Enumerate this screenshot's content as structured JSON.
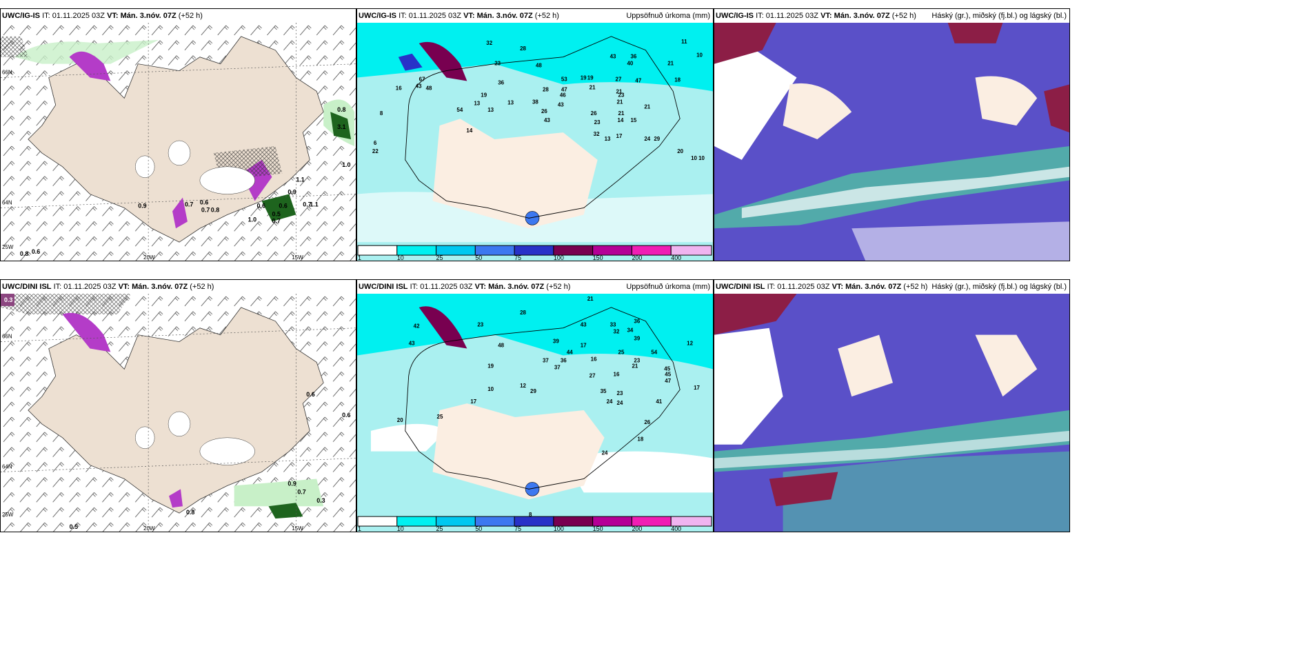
{
  "panels": {
    "top_left": {
      "model": "UWC/IG-IS",
      "it_label": "IT:",
      "it": "01.11.2025 03Z",
      "vt_label": "VT:",
      "vt": "Mán. 3.nóv. 07Z",
      "lead": "(+52 h)",
      "right_title": ""
    },
    "top_mid": {
      "model": "UWC/IG-IS",
      "it_label": "IT:",
      "it": "01.11.2025 03Z",
      "vt_label": "VT:",
      "vt": "Mán. 3.nóv. 07Z",
      "lead": "(+52 h)",
      "right_title": "Uppsöfnuð úrkoma (mm)"
    },
    "top_right": {
      "model": "UWC/IG-IS",
      "it_label": "IT:",
      "it": "01.11.2025 03Z",
      "vt_label": "VT:",
      "vt": "Mán. 3.nóv. 07Z",
      "lead": "(+52 h)",
      "right_title": "Háský (gr.), miðský (fj.bl.) og lágský (bl.)"
    },
    "bot_left": {
      "model": "UWC/DINI ISL",
      "it_label": "IT:",
      "it": "01.11.2025 03Z",
      "vt_label": "VT:",
      "vt": "Mán. 3.nóv. 07Z",
      "lead": "(+52 h)",
      "right_title": ""
    },
    "bot_mid": {
      "model": "UWC/DINI ISL",
      "it_label": "IT:",
      "it": "01.11.2025 03Z",
      "vt_label": "VT:",
      "vt": "Mán. 3.nóv. 07Z",
      "lead": "(+52 h)",
      "right_title": "Uppsöfnuð úrkoma (mm)"
    },
    "bot_right": {
      "model": "UWC/DINI ISL",
      "it_label": "IT:",
      "it": "01.11.2025 03Z",
      "vt_label": "VT:",
      "vt": "Mán. 3.nóv. 07Z",
      "lead": "(+52 h)",
      "right_title": "Háský (gr.), miðský (fj.bl.) og lágský (bl.)"
    }
  },
  "grid_labels": {
    "lon_20w": "20W",
    "lon_15w": "15W",
    "lon_25w": "25W",
    "lat_66n": "66N",
    "lat_64n": "64N"
  },
  "colorbar": {
    "ticks": [
      "1",
      "10",
      "25",
      "50",
      "75",
      "100",
      "150",
      "200",
      "400"
    ],
    "colors": [
      "#ffffff",
      "#00f0f0",
      "#00c8f0",
      "#3c78f0",
      "#2832c8",
      "#780050",
      "#b40096",
      "#f01eb4",
      "#f0b4f0"
    ]
  },
  "colors": {
    "land": "#ede0d2",
    "sea": "#ffffff",
    "precip_light": "#c8f0c8",
    "precip_green": "#1e641e",
    "precip_magenta": "#b43cc8",
    "acc_cyan": "#00f0f0",
    "acc_light": "#aaf0f0",
    "cloud_high": "#8c1e46",
    "cloud_mid": "#5a50c8",
    "cloud_low": "#50c8a0"
  },
  "top_left_values": [
    "0.8",
    "3.1",
    "1.0",
    "1.1",
    "0.9",
    "0.9",
    "0.7",
    "0.6",
    "0.7",
    "0.8",
    "0.6",
    "0.5",
    "0.7",
    "1.0",
    "0.6",
    "0.7",
    "1.1",
    "0.8",
    "0.6"
  ],
  "bot_left_values": [
    "0.3",
    "0.6",
    "0.6",
    "0.9",
    "0.7",
    "0.3",
    "0.8",
    "0.5"
  ],
  "top_mid_values": [
    "32",
    "28",
    "23",
    "36",
    "48",
    "53",
    "47",
    "46",
    "43",
    "19",
    "19",
    "21",
    "27",
    "43",
    "40",
    "36",
    "21",
    "47",
    "21",
    "18",
    "21",
    "16",
    "67",
    "43",
    "48",
    "13",
    "13",
    "19",
    "13",
    "38",
    "26",
    "28",
    "43",
    "54",
    "14",
    "26",
    "23",
    "8",
    "6",
    "22",
    "21",
    "23",
    "14",
    "15",
    "32",
    "13",
    "17",
    "24",
    "29",
    "21",
    "20",
    "10",
    "10",
    "11",
    "10"
  ],
  "bot_mid_values": [
    "21",
    "28",
    "23",
    "42",
    "48",
    "37",
    "39",
    "43",
    "33",
    "32",
    "34",
    "36",
    "39",
    "36",
    "37",
    "44",
    "45",
    "17",
    "16",
    "12",
    "54",
    "29",
    "27",
    "25",
    "35",
    "24",
    "24",
    "23",
    "26",
    "45",
    "47",
    "41",
    "17",
    "25",
    "43",
    "19",
    "10",
    "20",
    "23",
    "17",
    "16",
    "24",
    "21",
    "18",
    "12",
    "8"
  ]
}
